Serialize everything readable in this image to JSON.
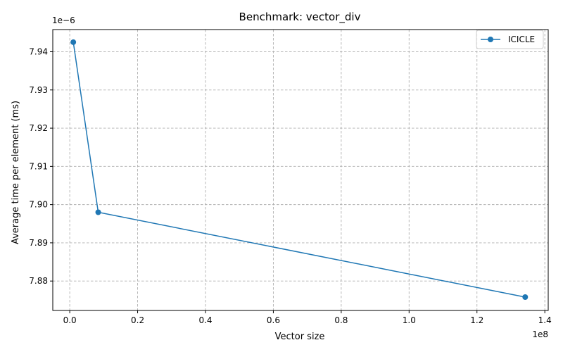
{
  "chart_data": {
    "type": "line",
    "title": "Benchmark: vector_div",
    "xlabel": "Vector size",
    "ylabel": "Average time per element (ms)",
    "x_offset_label": "1e8",
    "y_offset_label": "1e−6",
    "xlim": [
      -5000000,
      141000000
    ],
    "ylim": [
      7.8723,
      7.9458
    ],
    "x_ticks": [
      0,
      20000000,
      40000000,
      60000000,
      80000000,
      100000000,
      120000000,
      140000000
    ],
    "x_tick_labels": [
      "0.0",
      "0.2",
      "0.4",
      "0.6",
      "0.8",
      "1.0",
      "1.2",
      "1.4"
    ],
    "y_ticks": [
      7.88,
      7.89,
      7.9,
      7.91,
      7.92,
      7.93,
      7.94
    ],
    "y_tick_labels": [
      "7.88",
      "7.89",
      "7.90",
      "7.91",
      "7.92",
      "7.93",
      "7.94"
    ],
    "grid": true,
    "legend_position": "top-right",
    "series": [
      {
        "name": "ICICLE",
        "color": "#1f77b4",
        "marker": "circle",
        "x": [
          1048576,
          8388608,
          134217728
        ],
        "y": [
          7.9425,
          7.898,
          7.8758
        ]
      }
    ]
  }
}
